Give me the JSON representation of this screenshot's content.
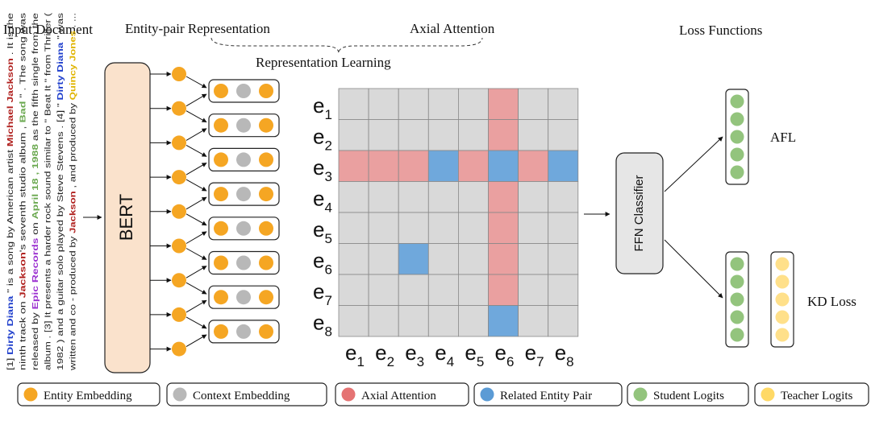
{
  "titles": {
    "input_document": "Input Document",
    "entity_pair": "Entity-pair Representation",
    "axial_attention": "Axial Attention",
    "representation_learning": "Representation Learning",
    "loss_functions": "Loss Functions"
  },
  "document": {
    "lines": [
      [
        {
          "t": "[1] "
        },
        {
          "t": "Dirty Diana",
          "c": "blue"
        },
        {
          "t": " \" is a song by American artist "
        },
        {
          "t": "Michael",
          "c": "red"
        },
        {
          "t": " "
        },
        {
          "t": "Jackson",
          "c": "red"
        },
        {
          "t": " . It is the"
        }
      ],
      [
        {
          "t": "ninth track on "
        },
        {
          "t": "Jackson",
          "c": "red"
        },
        {
          "t": "'s seventh studio album , "
        },
        {
          "t": "Bad",
          "c": "green"
        },
        {
          "t": " \" . The song was"
        }
      ],
      [
        {
          "t": "released by "
        },
        {
          "t": "Epic Records",
          "c": "purple"
        },
        {
          "t": " on "
        },
        {
          "t": "April 18 , 1988",
          "c": "green"
        },
        {
          "t": " as the fifth single from the"
        }
      ],
      [
        {
          "t": "album . [3] It presents a harder rock sound similar to \" Beat It \" from Thriller ("
        }
      ],
      [
        {
          "t": "1982 ) and a guitar solo played by Steve Stevens . [4] \" "
        },
        {
          "t": "Dirty Diana",
          "c": "blue"
        },
        {
          "t": " \" was"
        }
      ],
      [
        {
          "t": "written and co - produced by "
        },
        {
          "t": "Jackson",
          "c": "red"
        },
        {
          "t": " , and produced by "
        },
        {
          "t": "Quincy Jones",
          "c": "yellow"
        },
        {
          "t": " . ..."
        }
      ]
    ]
  },
  "encoder": {
    "label": "BERT"
  },
  "matrix": {
    "row_labels": [
      "e1",
      "e2",
      "e3",
      "e4",
      "e5",
      "e6",
      "e7",
      "e8"
    ],
    "col_labels": [
      "e1",
      "e2",
      "e3",
      "e4",
      "e5",
      "e6",
      "e7",
      "e8"
    ],
    "cells": [
      [
        0,
        0,
        0,
        0,
        0,
        1,
        0,
        0
      ],
      [
        0,
        0,
        0,
        0,
        0,
        1,
        0,
        0
      ],
      [
        1,
        1,
        1,
        2,
        1,
        2,
        1,
        2
      ],
      [
        0,
        0,
        0,
        0,
        0,
        1,
        0,
        0
      ],
      [
        0,
        0,
        0,
        0,
        0,
        1,
        0,
        0
      ],
      [
        0,
        0,
        2,
        0,
        0,
        1,
        0,
        0
      ],
      [
        0,
        0,
        0,
        0,
        0,
        1,
        0,
        0
      ],
      [
        0,
        0,
        0,
        0,
        0,
        2,
        0,
        0
      ]
    ]
  },
  "classifier": {
    "label": "FFN Classifier"
  },
  "losses": {
    "afl": "AFL",
    "kd": "KD Loss"
  },
  "legend": [
    {
      "label": "Entity Embedding",
      "color": "#f5a623"
    },
    {
      "label": "Context Embedding",
      "color": "#b8b8b8"
    },
    {
      "label": "Axial Attention",
      "color": "#e57373"
    },
    {
      "label": "Related Entity Pair",
      "color": "#5b9bd5"
    },
    {
      "label": "Student Logits",
      "color": "#93c47d"
    },
    {
      "label": "Teacher Logits",
      "color": "#ffd966"
    }
  ],
  "colors": {
    "entity": "#f5a623",
    "context": "#b8b8b8",
    "attention": "#eaa0a0",
    "related": "#6fa8dc",
    "grid_cell": "#d9d9d9",
    "student": "#93c47d",
    "teacher": "#ffe08a",
    "bert_fill": "#fae2cc",
    "text_blue": "#1f3fcc",
    "text_red": "#b0201e",
    "text_green": "#6aa84f",
    "text_purple": "#9b30d0",
    "text_yellow": "#e0b400"
  }
}
